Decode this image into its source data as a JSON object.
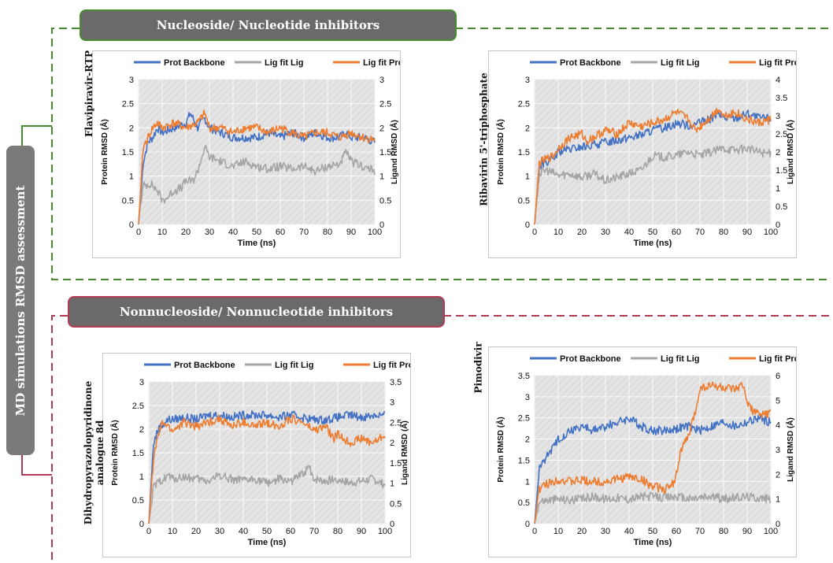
{
  "side_label": "MD simulations RMSD assessment",
  "section1": {
    "title": "Nucleoside/ Nucleotide inhibitors",
    "color": "#4a8a2e"
  },
  "section2": {
    "title": "Nonnucleoside/ Nonnucleotide inhibitors",
    "color": "#b23a55"
  },
  "colors": {
    "prot": "#4472c4",
    "lig": "#a5a5a5",
    "ligprot": "#ed7d31",
    "plot_bg": "#e4e4e4"
  },
  "chart_data": [
    {
      "type": "line",
      "compound": "Flavipiravir-RTP",
      "xlabel": "Time (ns)",
      "ylabel": "Protein RMSD (Å)",
      "y2label": "Ligand RMSD (Å)",
      "xlim": [
        0,
        100
      ],
      "xticks": [
        0,
        10,
        20,
        30,
        40,
        50,
        60,
        70,
        80,
        90,
        100
      ],
      "ylim": [
        0,
        3
      ],
      "yticks": [
        "0",
        "0.5",
        "1",
        "1.5",
        "2",
        "2.5",
        "3"
      ],
      "y2lim": [
        0,
        3
      ],
      "y2ticks": [
        "0",
        "0.5",
        "1",
        "1.5",
        "2",
        "2.5",
        "3"
      ],
      "legend": [
        "Prot Backbone",
        "Lig fit Lig",
        "Lig fit Prot"
      ],
      "series": [
        {
          "name": "Prot Backbone",
          "axis": "left",
          "x": [
            0,
            2,
            4,
            6,
            8,
            10,
            15,
            20,
            22,
            25,
            28,
            30,
            35,
            40,
            45,
            50,
            55,
            60,
            65,
            70,
            75,
            80,
            85,
            88,
            90,
            95,
            100
          ],
          "y": [
            0,
            1.3,
            1.7,
            1.8,
            2.0,
            1.9,
            2.0,
            2.1,
            2.3,
            2.0,
            2.2,
            2.0,
            1.9,
            1.8,
            1.8,
            1.8,
            1.9,
            1.8,
            1.9,
            1.8,
            1.9,
            1.8,
            1.8,
            1.9,
            1.8,
            1.8,
            1.7
          ]
        },
        {
          "name": "Lig fit Lig",
          "axis": "right",
          "x": [
            0,
            2,
            5,
            8,
            10,
            12,
            15,
            18,
            20,
            23,
            25,
            28,
            30,
            35,
            40,
            45,
            50,
            55,
            60,
            65,
            70,
            75,
            80,
            85,
            88,
            90,
            95,
            100
          ],
          "y": [
            0.1,
            0.8,
            0.85,
            0.7,
            0.5,
            0.55,
            0.7,
            0.75,
            0.9,
            0.9,
            1.1,
            1.6,
            1.4,
            1.3,
            1.2,
            1.3,
            1.2,
            1.15,
            1.2,
            1.15,
            1.2,
            1.1,
            1.2,
            1.25,
            1.5,
            1.3,
            1.2,
            1.1
          ]
        },
        {
          "name": "Lig fit Prot",
          "axis": "right",
          "x": [
            0,
            2,
            4,
            6,
            8,
            10,
            15,
            20,
            25,
            28,
            30,
            35,
            40,
            45,
            50,
            55,
            60,
            65,
            70,
            75,
            80,
            85,
            90,
            95,
            100
          ],
          "y": [
            0,
            1.6,
            1.8,
            2.0,
            2.1,
            2.0,
            2.1,
            2.0,
            2.1,
            2.3,
            2.0,
            2.0,
            1.9,
            2.0,
            2.0,
            1.9,
            2.0,
            1.9,
            1.8,
            1.9,
            1.9,
            1.8,
            1.9,
            1.8,
            1.75
          ]
        }
      ]
    },
    {
      "type": "line",
      "compound": "Ribavirin 5'-triphosphate",
      "xlabel": "Time (ns)",
      "ylabel": "Protein RMSD (Å)",
      "y2label": "Ligand RMSD (Å)",
      "xlim": [
        0,
        100
      ],
      "xticks": [
        0,
        10,
        20,
        30,
        40,
        50,
        60,
        70,
        80,
        90,
        100
      ],
      "ylim": [
        0,
        3
      ],
      "yticks": [
        "0",
        "0.5",
        "1",
        "1.5",
        "2",
        "2.5",
        "3"
      ],
      "y2lim": [
        0,
        4
      ],
      "y2ticks": [
        "0",
        "0.5",
        "1",
        "1.5",
        "2",
        "2.5",
        "3",
        "3.5",
        "4"
      ],
      "legend": [
        "Prot Backbone",
        "Lig fit Lig",
        "Lig fit Prot"
      ],
      "series": [
        {
          "name": "Prot Backbone",
          "axis": "left",
          "x": [
            0,
            2,
            5,
            8,
            10,
            15,
            20,
            25,
            30,
            35,
            40,
            45,
            50,
            55,
            60,
            65,
            70,
            75,
            78,
            80,
            85,
            90,
            95,
            100
          ],
          "y": [
            0,
            1.2,
            1.3,
            1.35,
            1.5,
            1.55,
            1.6,
            1.65,
            1.7,
            1.75,
            1.8,
            1.85,
            1.95,
            2.0,
            2.1,
            2.05,
            2.1,
            2.2,
            2.3,
            2.2,
            2.2,
            2.3,
            2.2,
            2.2
          ]
        },
        {
          "name": "Lig fit Lig",
          "axis": "right",
          "x": [
            0,
            2,
            5,
            10,
            15,
            20,
            25,
            30,
            35,
            40,
            45,
            50,
            55,
            60,
            65,
            70,
            75,
            80,
            85,
            90,
            95,
            100
          ],
          "y": [
            0,
            1.4,
            1.5,
            1.35,
            1.4,
            1.3,
            1.4,
            1.2,
            1.3,
            1.4,
            1.5,
            1.9,
            1.85,
            1.9,
            2.0,
            1.9,
            2.0,
            2.1,
            2.05,
            2.1,
            2.0,
            1.95
          ]
        },
        {
          "name": "Lig fit Prot",
          "axis": "right",
          "x": [
            0,
            2,
            5,
            8,
            10,
            15,
            20,
            22,
            25,
            30,
            35,
            40,
            45,
            50,
            55,
            60,
            65,
            68,
            70,
            75,
            78,
            80,
            85,
            90,
            95,
            100
          ],
          "y": [
            0,
            1.7,
            1.8,
            1.9,
            2.1,
            2.4,
            2.5,
            2.3,
            2.4,
            2.6,
            2.5,
            2.8,
            2.7,
            2.8,
            2.9,
            3.1,
            2.9,
            2.6,
            2.7,
            3.0,
            3.2,
            3.0,
            3.1,
            2.9,
            2.8,
            2.9
          ]
        }
      ]
    },
    {
      "type": "line",
      "compound": "Dihydropyrazolopyridinone analogue 8d",
      "compound_lines": [
        "Dihydropyrazolopyridinone",
        "analogue 8d"
      ],
      "xlabel": "Time (ns)",
      "ylabel": "Protein RMSD (Å)",
      "y2label": "Ligand RMSD (Å)",
      "xlim": [
        0,
        100
      ],
      "xticks": [
        0,
        10,
        20,
        30,
        40,
        50,
        60,
        70,
        80,
        90,
        100
      ],
      "ylim": [
        0,
        3
      ],
      "yticks": [
        "0",
        "0.5",
        "1",
        "1.5",
        "2",
        "2.5",
        "3"
      ],
      "y2lim": [
        0,
        3.5
      ],
      "y2ticks": [
        "0",
        "0.5",
        "1",
        "1.5",
        "2",
        "2.5",
        "3",
        "3.5"
      ],
      "legend": [
        "Prot Backbone",
        "Lig fit Lig",
        "Lig fit Prot"
      ],
      "series": [
        {
          "name": "Prot Backbone",
          "axis": "left",
          "x": [
            0,
            2,
            4,
            6,
            8,
            10,
            15,
            20,
            25,
            30,
            35,
            40,
            45,
            50,
            55,
            60,
            65,
            70,
            75,
            80,
            85,
            90,
            95,
            100
          ],
          "y": [
            0,
            1.7,
            2.0,
            2.1,
            2.2,
            2.2,
            2.25,
            2.2,
            2.3,
            2.3,
            2.25,
            2.3,
            2.3,
            2.3,
            2.25,
            2.3,
            2.25,
            2.2,
            2.2,
            2.25,
            2.3,
            2.25,
            2.3,
            2.3
          ]
        },
        {
          "name": "Lig fit Lig",
          "axis": "right",
          "x": [
            0,
            2,
            4,
            6,
            8,
            10,
            15,
            20,
            25,
            30,
            35,
            40,
            45,
            50,
            55,
            60,
            65,
            68,
            70,
            75,
            80,
            85,
            90,
            95,
            100
          ],
          "y": [
            0,
            0.9,
            1.0,
            1.1,
            1.2,
            1.1,
            1.15,
            1.1,
            1.05,
            1.2,
            1.1,
            1.05,
            1.1,
            1.0,
            1.1,
            1.05,
            1.2,
            1.4,
            1.1,
            1.05,
            1.1,
            1.0,
            1.05,
            1.1,
            0.95
          ]
        },
        {
          "name": "Lig fit Prot",
          "axis": "right",
          "x": [
            0,
            2,
            4,
            6,
            8,
            10,
            15,
            20,
            25,
            30,
            35,
            40,
            45,
            50,
            55,
            60,
            65,
            70,
            75,
            78,
            80,
            85,
            90,
            95,
            100
          ],
          "y": [
            0,
            1.6,
            2.2,
            2.5,
            2.4,
            2.3,
            2.5,
            2.4,
            2.5,
            2.6,
            2.4,
            2.5,
            2.4,
            2.5,
            2.4,
            2.6,
            2.5,
            2.3,
            2.4,
            2.1,
            2.2,
            2.0,
            2.1,
            2.0,
            2.2
          ]
        }
      ]
    },
    {
      "type": "line",
      "compound": "Pimodivir",
      "xlabel": "Time (ns)",
      "ylabel": "Protein RMSD (Å)",
      "y2label": "Ligand RMSD (Å)",
      "xlim": [
        0,
        100
      ],
      "xticks": [
        0,
        10,
        20,
        30,
        40,
        50,
        60,
        70,
        80,
        90,
        100
      ],
      "ylim": [
        0,
        3.5
      ],
      "yticks": [
        "0",
        "0.5",
        "1",
        "1.5",
        "2",
        "2.5",
        "3",
        "3.5"
      ],
      "y2lim": [
        0,
        6
      ],
      "y2ticks": [
        "0",
        "1",
        "2",
        "3",
        "4",
        "5",
        "6"
      ],
      "legend": [
        "Prot Backbone",
        "Lig fit Lig",
        "Lig fit Prot"
      ],
      "series": [
        {
          "name": "Prot Backbone",
          "axis": "left",
          "x": [
            0,
            2,
            5,
            8,
            10,
            15,
            20,
            25,
            30,
            35,
            40,
            45,
            50,
            55,
            60,
            65,
            70,
            75,
            80,
            85,
            90,
            95,
            100
          ],
          "y": [
            0,
            1.3,
            1.6,
            1.8,
            2.0,
            2.2,
            2.3,
            2.2,
            2.3,
            2.4,
            2.5,
            2.3,
            2.2,
            2.2,
            2.25,
            2.3,
            2.2,
            2.3,
            2.4,
            2.3,
            2.4,
            2.5,
            2.4
          ]
        },
        {
          "name": "Lig fit Lig",
          "axis": "right",
          "x": [
            0,
            2,
            5,
            10,
            15,
            20,
            25,
            30,
            35,
            40,
            45,
            50,
            55,
            60,
            65,
            70,
            75,
            80,
            85,
            90,
            95,
            100
          ],
          "y": [
            0,
            0.9,
            0.95,
            1.0,
            0.95,
            1.0,
            1.1,
            1.0,
            1.05,
            1.0,
            1.1,
            1.1,
            1.05,
            1.1,
            1.0,
            1.05,
            1.1,
            1.0,
            1.05,
            1.1,
            1.05,
            1.0
          ]
        },
        {
          "name": "Lig fit Prot",
          "axis": "right",
          "x": [
            0,
            2,
            5,
            8,
            10,
            15,
            20,
            25,
            30,
            35,
            40,
            45,
            50,
            55,
            58,
            60,
            62,
            65,
            68,
            70,
            75,
            80,
            85,
            88,
            90,
            92,
            95,
            100
          ],
          "y": [
            0,
            1.4,
            1.6,
            1.7,
            1.8,
            1.7,
            1.75,
            1.7,
            1.7,
            1.8,
            1.9,
            1.8,
            1.5,
            1.4,
            1.5,
            2.0,
            3.0,
            3.5,
            4.5,
            5.5,
            5.6,
            5.5,
            5.4,
            5.6,
            5.0,
            4.6,
            4.4,
            4.5
          ]
        }
      ]
    }
  ]
}
